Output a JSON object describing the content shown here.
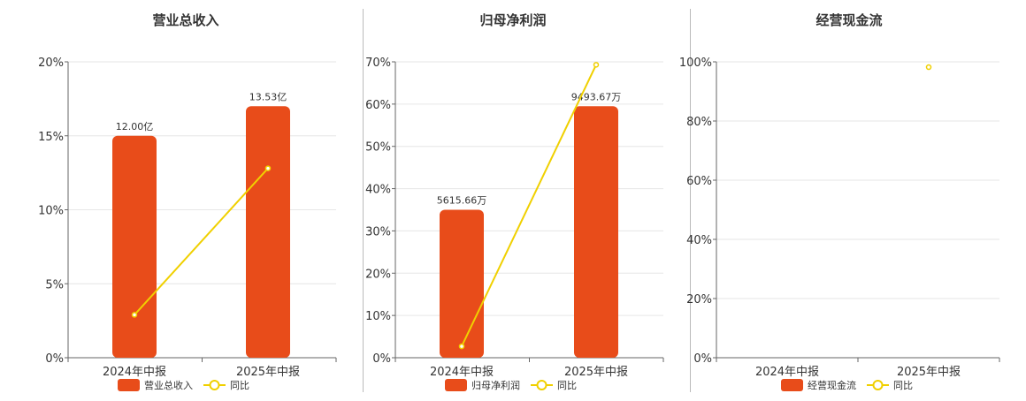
{
  "chart_data": [
    {
      "type": "bar",
      "title": "营业总收入",
      "categories": [
        "2024年中报",
        "2025年中报"
      ],
      "series": [
        {
          "name": "营业总收入",
          "type": "bar",
          "values": [
            15.0,
            17.0
          ],
          "labels": [
            "12.00亿",
            "13.53亿"
          ]
        },
        {
          "name": "同比",
          "type": "line",
          "values": [
            2.9,
            12.8
          ]
        }
      ],
      "yticks": [
        "0%",
        "5%",
        "10%",
        "15%",
        "20%"
      ],
      "ylim": [
        0,
        20
      ],
      "grid": true,
      "legend": "bottom",
      "colors": {
        "bar": "#e84c1a",
        "line": "#f0d000"
      }
    },
    {
      "type": "bar",
      "title": "归母净利润",
      "categories": [
        "2024年中报",
        "2025年中报"
      ],
      "series": [
        {
          "name": "归母净利润",
          "type": "bar",
          "values": [
            35.0,
            59.5
          ],
          "labels": [
            "5615.66万",
            "9493.67万"
          ]
        },
        {
          "name": "同比",
          "type": "line",
          "values": [
            2.7,
            69.3
          ]
        }
      ],
      "yticks": [
        "0%",
        "10%",
        "20%",
        "30%",
        "40%",
        "50%",
        "60%",
        "70%"
      ],
      "ylim": [
        0,
        70
      ],
      "grid": true,
      "legend": "bottom",
      "colors": {
        "bar": "#e84c1a",
        "line": "#f0d000"
      }
    },
    {
      "type": "bar",
      "title": "经营现金流",
      "categories": [
        "2024年中报",
        "2025年中报"
      ],
      "series": [
        {
          "name": "经营现金流",
          "type": "bar",
          "values": [
            null,
            null
          ],
          "labels": []
        },
        {
          "name": "同比",
          "type": "line",
          "values": [
            null,
            98.2
          ]
        }
      ],
      "yticks": [
        "0%",
        "20%",
        "40%",
        "60%",
        "80%",
        "100%"
      ],
      "ylim": [
        0,
        100
      ],
      "grid": true,
      "legend": "bottom",
      "colors": {
        "bar": "#e84c1a",
        "line": "#f0d000"
      }
    }
  ]
}
